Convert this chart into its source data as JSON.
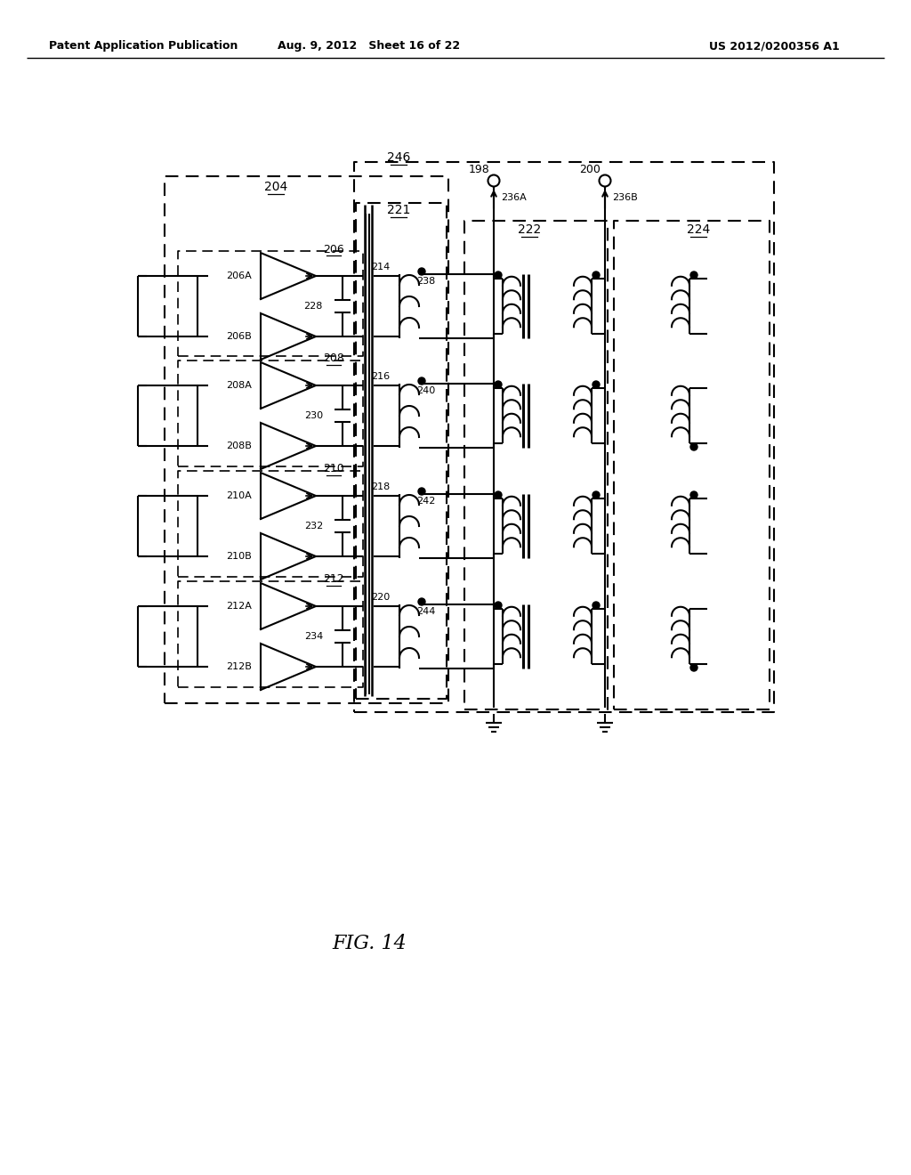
{
  "title": "FIG. 14",
  "header_left": "Patent Application Publication",
  "header_center": "Aug. 9, 2012   Sheet 16 of 22",
  "header_right": "US 2012/0200356 A1",
  "background_color": "#ffffff",
  "line_color": "#000000",
  "rows": [
    {
      "name": "206",
      "ampA": "206A",
      "ampB": "206B",
      "cap": "228",
      "filt": "238",
      "label": "214"
    },
    {
      "name": "208",
      "ampA": "208A",
      "ampB": "208B",
      "cap": "230",
      "filt": "240",
      "label": "216"
    },
    {
      "name": "210",
      "ampA": "210A",
      "ampB": "210B",
      "cap": "232",
      "filt": "242",
      "label": "218"
    },
    {
      "name": "212",
      "ampA": "212A",
      "ampB": "212B",
      "cap": "234",
      "filt": "244",
      "label": "220"
    }
  ]
}
